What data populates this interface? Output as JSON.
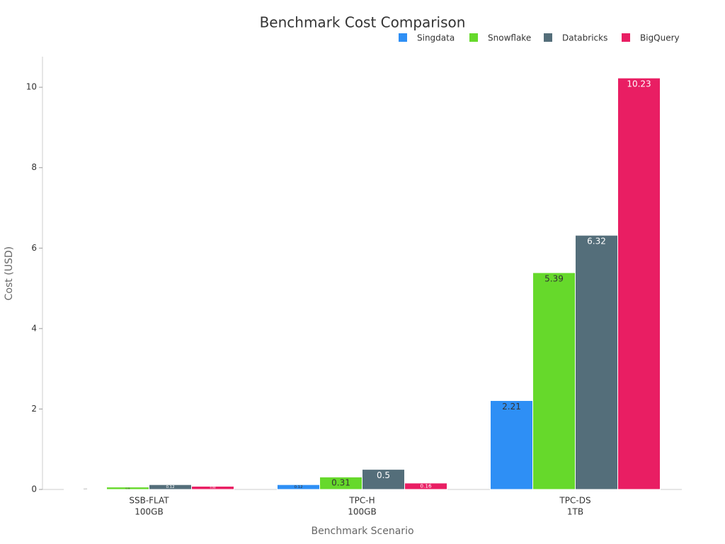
{
  "chart_data": {
    "type": "bar",
    "title": "Benchmark Cost Comparison",
    "x_label": "Benchmark Scenario",
    "y_label": "Cost (USD)",
    "categories": [
      [
        "SSB-FLAT",
        "100GB"
      ],
      [
        "TPC-H",
        "100GB"
      ],
      [
        "TPC-DS",
        "1TB"
      ]
    ],
    "series": [
      {
        "name": "Singdata",
        "color": "#2e8ff5",
        "values": [
          0.01,
          0.12,
          2.21
        ]
      },
      {
        "name": "Snowflake",
        "color": "#66d92b",
        "values": [
          0.06,
          0.31,
          5.39
        ]
      },
      {
        "name": "Databricks",
        "color": "#546e7a",
        "values": [
          0.12,
          0.5,
          6.32
        ]
      },
      {
        "name": "BigQuery",
        "color": "#e91e63",
        "values": [
          0.08,
          0.16,
          10.23
        ]
      }
    ],
    "ylim": [
      0,
      10.76
    ],
    "yticks": [
      0,
      2,
      4,
      6,
      8,
      10
    ],
    "legend": "top-right"
  }
}
